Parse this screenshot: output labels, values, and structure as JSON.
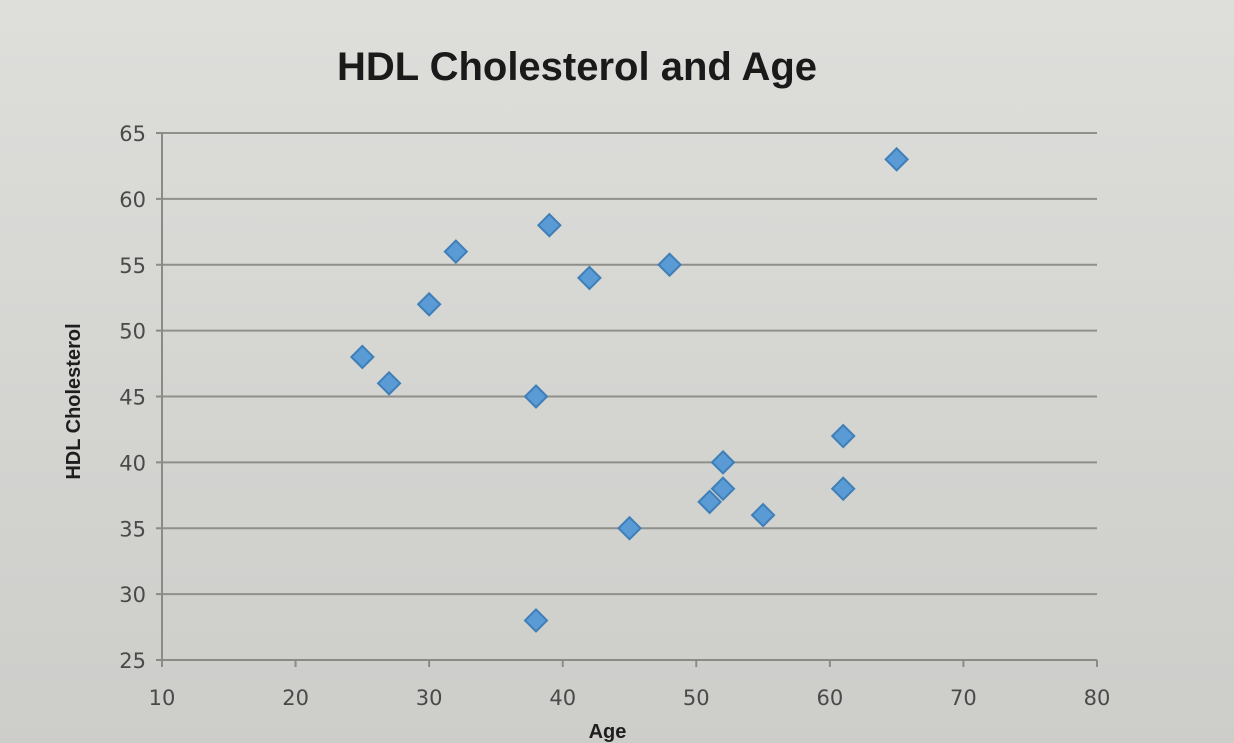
{
  "chart_data": {
    "type": "scatter",
    "title": "HDL Cholesterol and Age",
    "xlabel": "Age",
    "ylabel": "HDL Cholesterol",
    "xlim": [
      10,
      80
    ],
    "ylim": [
      25,
      65
    ],
    "xticks": [
      10,
      20,
      30,
      40,
      50,
      60,
      70,
      80
    ],
    "yticks": [
      25,
      30,
      35,
      40,
      45,
      50,
      55,
      60,
      65
    ],
    "grid": "horizontal",
    "legend": "none",
    "marker": "diamond",
    "marker_color": "#5b9bd5",
    "series": [
      {
        "points": [
          {
            "x": 25,
            "y": 48
          },
          {
            "x": 27,
            "y": 46
          },
          {
            "x": 30,
            "y": 52
          },
          {
            "x": 32,
            "y": 56
          },
          {
            "x": 38,
            "y": 45
          },
          {
            "x": 38,
            "y": 28
          },
          {
            "x": 39,
            "y": 58
          },
          {
            "x": 42,
            "y": 54
          },
          {
            "x": 45,
            "y": 35
          },
          {
            "x": 48,
            "y": 55
          },
          {
            "x": 51,
            "y": 37
          },
          {
            "x": 52,
            "y": 38
          },
          {
            "x": 52,
            "y": 40
          },
          {
            "x": 55,
            "y": 36
          },
          {
            "x": 61,
            "y": 42
          },
          {
            "x": 61,
            "y": 38
          },
          {
            "x": 65,
            "y": 63
          }
        ]
      }
    ]
  }
}
